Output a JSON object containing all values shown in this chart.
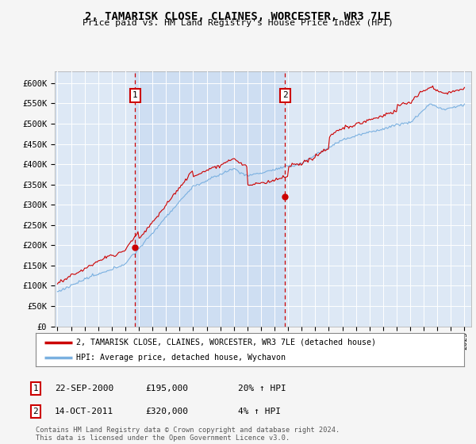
{
  "title": "2, TAMARISK CLOSE, CLAINES, WORCESTER, WR3 7LE",
  "subtitle": "Price paid vs. HM Land Registry's House Price Index (HPI)",
  "ylabel_ticks": [
    "£0",
    "£50K",
    "£100K",
    "£150K",
    "£200K",
    "£250K",
    "£300K",
    "£350K",
    "£400K",
    "£450K",
    "£500K",
    "£550K",
    "£600K"
  ],
  "ytick_values": [
    0,
    50000,
    100000,
    150000,
    200000,
    250000,
    300000,
    350000,
    400000,
    450000,
    500000,
    550000,
    600000
  ],
  "ylim": [
    0,
    630000
  ],
  "xlim_start": 1994.8,
  "xlim_end": 2025.5,
  "fig_bg_color": "#f5f5f5",
  "plot_bg_color": "#dde8f5",
  "shade_color": "#c5d8f0",
  "hpi_color": "#7ab0e0",
  "price_color": "#cc0000",
  "vline_color": "#cc0000",
  "marker_color": "#cc0000",
  "sale1_x": 2000.72,
  "sale1_y": 195000,
  "sale1_label": "1",
  "sale1_date": "22-SEP-2000",
  "sale1_price": "£195,000",
  "sale1_hpi": "20% ↑ HPI",
  "sale2_x": 2011.78,
  "sale2_y": 320000,
  "sale2_label": "2",
  "sale2_date": "14-OCT-2011",
  "sale2_price": "£320,000",
  "sale2_hpi": "4% ↑ HPI",
  "legend_line1": "2, TAMARISK CLOSE, CLAINES, WORCESTER, WR3 7LE (detached house)",
  "legend_line2": "HPI: Average price, detached house, Wychavon",
  "footer": "Contains HM Land Registry data © Crown copyright and database right 2024.\nThis data is licensed under the Open Government Licence v3.0.",
  "xtick_years": [
    1995,
    1996,
    1997,
    1998,
    1999,
    2000,
    2001,
    2002,
    2003,
    2004,
    2005,
    2006,
    2007,
    2008,
    2009,
    2010,
    2011,
    2012,
    2013,
    2014,
    2015,
    2016,
    2017,
    2018,
    2019,
    2020,
    2021,
    2022,
    2023,
    2024,
    2025
  ]
}
